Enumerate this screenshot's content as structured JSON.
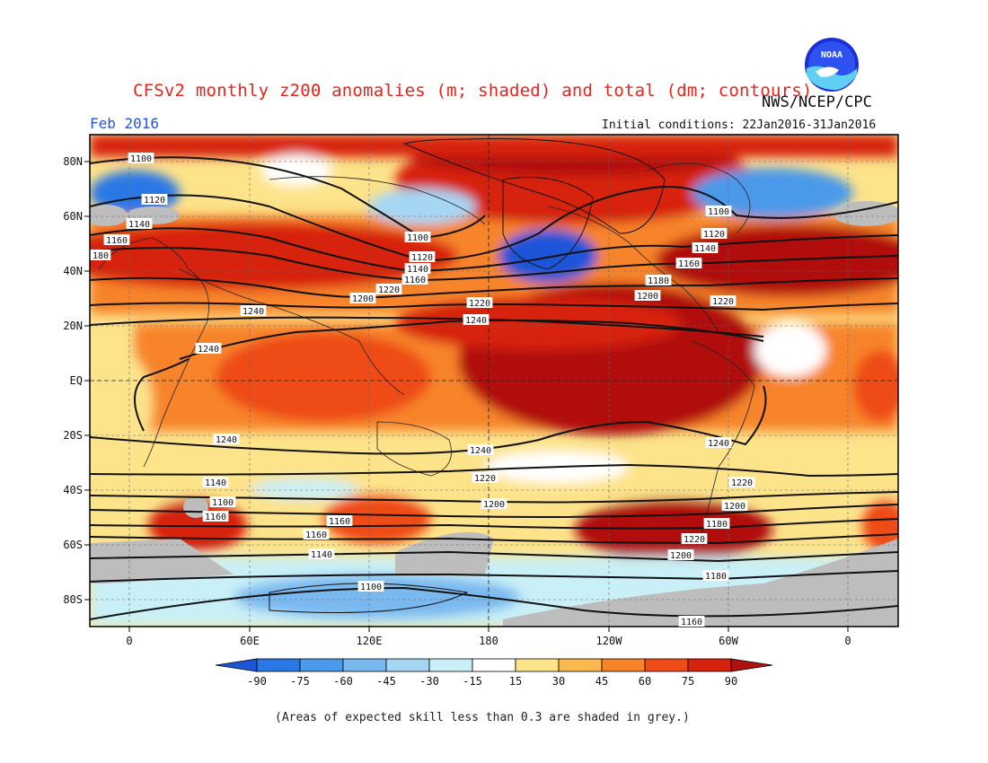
{
  "header": {
    "title": "CFSv2 monthly z200 anomalies (m; shaded) and total (dm; contours)",
    "agency": "NWS/NCEP/CPC",
    "month": "Feb 2016",
    "initial_conditions": "Initial conditions: 22Jan2016-31Jan2016"
  },
  "logo": {
    "text": "NOAA"
  },
  "map": {
    "lat_labels": [
      "80N",
      "60N",
      "40N",
      "20N",
      "EQ",
      "20S",
      "40S",
      "60S",
      "80S"
    ],
    "lon_labels": [
      "0",
      "60E",
      "120E",
      "180",
      "120W",
      "60W",
      "0"
    ],
    "contour_labels": [
      "1100",
      "1120",
      "1140",
      "1160",
      "180",
      "1100",
      "1120",
      "1140",
      "1160",
      "1200",
      "1220",
      "1240",
      "1100",
      "1120",
      "1140",
      "1160",
      "1180",
      "1200",
      "1220",
      "1220",
      "1240",
      "1240",
      "1240",
      "1220",
      "1200",
      "1160",
      "1160",
      "1140",
      "1120",
      "1100",
      "1240",
      "1220",
      "1200",
      "1180",
      "1220",
      "1200",
      "1180",
      "1160",
      "1140",
      "1120",
      "1100"
    ]
  },
  "colorbar": {
    "ticks": [
      "-90",
      "-75",
      "-60",
      "-45",
      "-30",
      "-15",
      "15",
      "30",
      "45",
      "60",
      "75",
      "90"
    ],
    "colors": [
      "#1d55d8",
      "#2a78e6",
      "#4b99ea",
      "#79b9f0",
      "#a5d7f5",
      "#c9f0f6",
      "#ffffff",
      "#fde38a",
      "#fbb950",
      "#f7842b",
      "#ee4b16",
      "#d7220d",
      "#b1100c"
    ]
  },
  "footnote": "(Areas of expected skill less than 0.3 are shaded in grey.)"
}
